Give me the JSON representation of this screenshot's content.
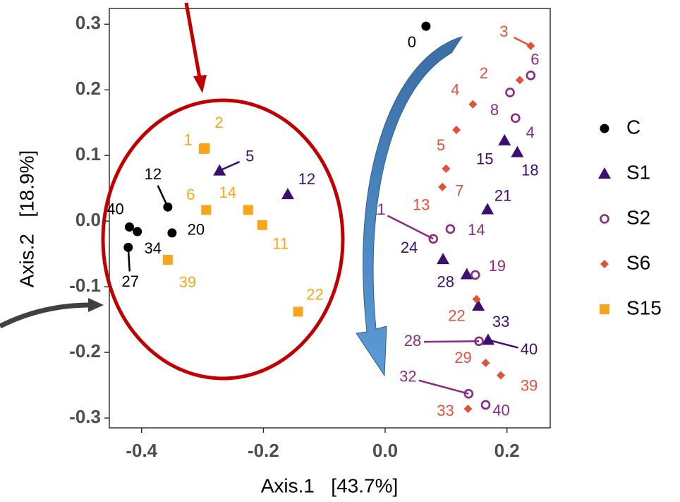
{
  "chart_data": {
    "type": "scatter",
    "x_label": "Axis.1   [43.7%]",
    "y_label": "Axis.2   [18.9%]",
    "xlim": [
      -0.453,
      0.271
    ],
    "ylim": [
      -0.315,
      0.324
    ],
    "xticks": [
      -0.4,
      -0.2,
      {
        "value": 0,
        "label": "0.0"
      },
      0.2
    ],
    "yticks": [
      0.3,
      0.2,
      0.1,
      {
        "value": 0,
        "label": "0.0"
      },
      -0.1,
      -0.2,
      -0.3
    ],
    "legend": "right",
    "series": [
      {
        "name": "C",
        "color": "#000000",
        "marker": "circle",
        "x": [
          0.067,
          -0.357,
          -0.42,
          -0.407,
          -0.35,
          -0.422
        ],
        "values": [
          0.297,
          0.0215,
          -0.009,
          -0.016,
          -0.018,
          -0.04
        ],
        "labels": [
          "0",
          "12",
          "40",
          "34",
          "20",
          "27"
        ]
      },
      {
        "name": "S1",
        "color": "#3b0f70",
        "marker": "triangle",
        "x": [
          -0.272,
          -0.16,
          0.196,
          0.217,
          0.168,
          0.095,
          0.134,
          0.153,
          0.169
        ],
        "values": [
          0.077,
          0.041,
          0.123,
          0.105,
          0.018,
          -0.058,
          -0.081,
          -0.129,
          -0.181
        ],
        "labels": [
          "5",
          "12",
          "15",
          "18",
          "21",
          "24",
          "28",
          "33",
          "40"
        ]
      },
      {
        "name": "S2",
        "color": "#8c2981",
        "marker": "open-circle",
        "x": [
          0.239,
          0.205,
          0.214,
          0.107,
          0.079,
          0.148,
          0.154,
          0.137,
          0.165
        ],
        "values": [
          0.222,
          0.196,
          0.157,
          -0.012,
          -0.027,
          -0.082,
          -0.183,
          -0.263,
          -0.28
        ],
        "labels": [
          "6",
          "8",
          "4",
          "14",
          "11",
          "19",
          "28",
          "32",
          "40"
        ]
      },
      {
        "name": "S6",
        "color": "#e0533a",
        "marker": "diamond",
        "x": [
          0.239,
          0.221,
          0.144,
          0.117,
          0.1,
          0.094,
          0.15,
          0.165,
          0.19,
          0.136
        ],
        "values": [
          0.267,
          0.215,
          0.178,
          0.139,
          0.08,
          0.052,
          -0.119,
          -0.216,
          -0.235,
          -0.286
        ],
        "labels": [
          "3",
          "2",
          "4",
          "5",
          "7",
          "13",
          "22",
          "29",
          "39",
          "33"
        ]
      },
      {
        "name": "S15",
        "color": "#f9a51c",
        "marker": "square",
        "x": [
          -0.298,
          -0.296,
          -0.294,
          -0.225,
          -0.202,
          -0.357,
          -0.143
        ],
        "values": [
          0.11,
          0.111,
          0.017,
          0.017,
          -0.006,
          -0.059,
          -0.138
        ],
        "labels": [
          "1",
          "2",
          "6",
          "14",
          "11",
          "39",
          "22"
        ]
      }
    ]
  }
}
